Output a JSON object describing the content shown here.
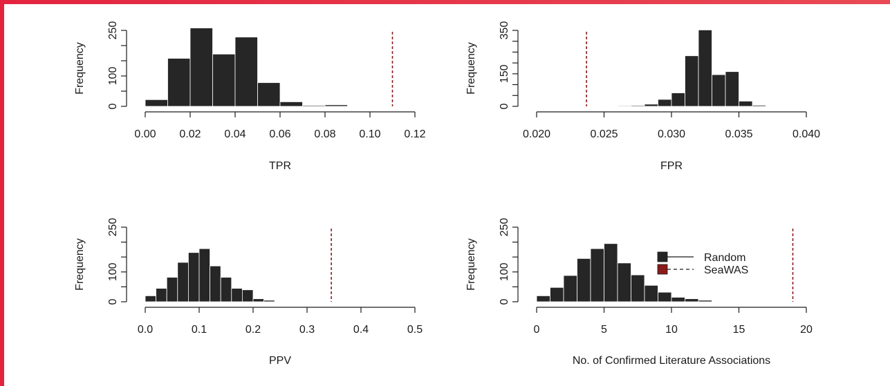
{
  "colors": {
    "bar_fill": "#262626",
    "bar_stroke": "#ffffff",
    "reference_line": "#8b1a1a",
    "frame_accent": "#e3243f"
  },
  "legend": {
    "entries": [
      {
        "label": "Random",
        "color": "#262626",
        "line": "solid"
      },
      {
        "label": "SeaWAS",
        "color": "#8b1a1a",
        "line": "dashed"
      }
    ],
    "placement": "top-right of bottom-right panel"
  },
  "chart_data": [
    {
      "type": "bar",
      "subtype": "histogram",
      "xlabel": "TPR",
      "ylabel": "Frequency",
      "xlim": [
        0,
        0.12
      ],
      "ylim": [
        0,
        250
      ],
      "xticks": [
        "0.00",
        "0.02",
        "0.04",
        "0.06",
        "0.08",
        "0.10",
        "0.12"
      ],
      "yticks": [
        "0",
        "100",
        "250"
      ],
      "bin_edges": [
        0.0,
        0.01,
        0.02,
        0.03,
        0.04,
        0.05,
        0.06,
        0.07,
        0.08,
        0.09
      ],
      "values": [
        22,
        158,
        258,
        172,
        228,
        78,
        15,
        3,
        5
      ],
      "reference_line": {
        "name": "SeaWAS",
        "x": 0.11
      }
    },
    {
      "type": "bar",
      "subtype": "histogram",
      "xlabel": "FPR",
      "ylabel": "Frequency",
      "xlim": [
        0.02,
        0.04
      ],
      "ylim": [
        0,
        350
      ],
      "xticks": [
        "0.020",
        "0.025",
        "0.030",
        "0.035",
        "0.040"
      ],
      "yticks": [
        "0",
        "150",
        "350"
      ],
      "bin_edges": [
        0.026,
        0.027,
        0.028,
        0.029,
        0.03,
        0.031,
        0.032,
        0.033,
        0.034,
        0.035,
        0.036,
        0.037
      ],
      "values": [
        3,
        4,
        10,
        32,
        62,
        233,
        352,
        146,
        160,
        24,
        5
      ],
      "reference_line": {
        "name": "SeaWAS",
        "x": 0.0237
      }
    },
    {
      "type": "bar",
      "subtype": "histogram",
      "xlabel": "PPV",
      "ylabel": "Frequency",
      "xlim": [
        0,
        0.5
      ],
      "ylim": [
        0,
        250
      ],
      "xticks": [
        "0.0",
        "0.1",
        "0.2",
        "0.3",
        "0.4",
        "0.5"
      ],
      "yticks": [
        "0",
        "100",
        "250"
      ],
      "bin_edges": [
        0.0,
        0.02,
        0.04,
        0.06,
        0.08,
        0.1,
        0.12,
        0.14,
        0.16,
        0.18,
        0.2,
        0.22,
        0.24
      ],
      "values": [
        20,
        45,
        82,
        132,
        165,
        178,
        120,
        82,
        45,
        40,
        10,
        5
      ],
      "reference_line": {
        "name": "SeaWAS",
        "x": 0.345
      }
    },
    {
      "type": "bar",
      "subtype": "histogram",
      "xlabel": "No. of Confirmed Literature Associations",
      "ylabel": "Frequency",
      "xlim": [
        0,
        20
      ],
      "ylim": [
        0,
        250
      ],
      "xticks": [
        "0",
        "5",
        "10",
        "15",
        "20"
      ],
      "yticks": [
        "0",
        "100",
        "250"
      ],
      "bin_edges": [
        0,
        1,
        2,
        3,
        4,
        5,
        6,
        7,
        8,
        9,
        10,
        11,
        12,
        13
      ],
      "values": [
        20,
        48,
        88,
        145,
        178,
        195,
        130,
        90,
        55,
        32,
        15,
        10,
        5
      ],
      "reference_line": {
        "name": "SeaWAS",
        "x": 19
      }
    }
  ]
}
